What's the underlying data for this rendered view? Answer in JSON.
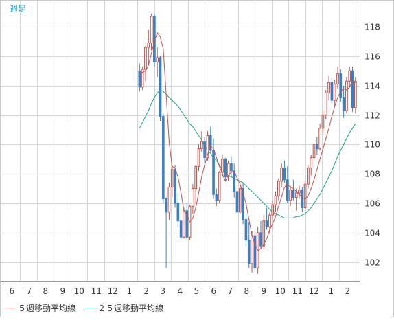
{
  "chart_data": {
    "type": "candlestick",
    "title": "週足",
    "x_tick_labels": [
      "6",
      "7",
      "8",
      "9",
      "10",
      "11",
      "12",
      "1",
      "2",
      "3",
      "4",
      "5",
      "6",
      "7",
      "8",
      "9",
      "10",
      "11",
      "12",
      "1",
      "2"
    ],
    "y_ticks": [
      102,
      104,
      106,
      108,
      110,
      112,
      114,
      116,
      118
    ],
    "ylim": [
      100.7,
      119.8
    ],
    "grid": true,
    "legend": {
      "placement": "bottom-left",
      "entries": [
        {
          "name": "５週移動平均線",
          "color": "#c0504d"
        },
        {
          "name": "２５週移動平均線",
          "color": "#1e9e6e"
        }
      ]
    },
    "colors": {
      "up": "#c0504d",
      "down": "#3d7fc1",
      "ma5": "#c0504d",
      "ma25": "#1e9e6e",
      "grid": "#d4d4d4",
      "border": "#999999",
      "tick_text": "#333333"
    },
    "weeks": 120,
    "ohlc": [
      [
        115.0,
        115.5,
        113.6,
        113.9
      ],
      [
        113.9,
        115.3,
        113.7,
        115.1
      ],
      [
        115.1,
        116.7,
        114.3,
        116.6
      ],
      [
        116.6,
        117.8,
        115.4,
        116.9
      ],
      [
        116.9,
        118.9,
        116.4,
        118.7
      ],
      [
        118.7,
        118.9,
        115.3,
        115.6
      ],
      [
        115.6,
        116.6,
        114.6,
        115.9
      ],
      [
        115.9,
        116.0,
        111.6,
        111.9
      ],
      [
        111.9,
        112.1,
        106.0,
        106.3
      ],
      [
        106.3,
        106.4,
        101.6,
        105.4
      ],
      [
        105.4,
        107.4,
        104.9,
        107.1
      ],
      [
        107.1,
        108.6,
        106.4,
        108.3
      ],
      [
        108.3,
        108.6,
        105.7,
        106.0
      ],
      [
        106.0,
        106.7,
        104.4,
        104.8
      ],
      [
        104.8,
        104.9,
        103.5,
        103.7
      ],
      [
        103.7,
        105.7,
        103.6,
        105.5
      ],
      [
        105.5,
        106.0,
        103.5,
        103.7
      ],
      [
        103.7,
        105.9,
        103.5,
        105.8
      ],
      [
        105.8,
        107.3,
        105.3,
        107.0
      ],
      [
        107.0,
        108.6,
        106.0,
        108.5
      ],
      [
        108.5,
        110.0,
        108.2,
        109.7
      ],
      [
        109.7,
        110.9,
        109.5,
        110.2
      ],
      [
        110.2,
        110.5,
        108.7,
        109.1
      ],
      [
        109.1,
        110.9,
        108.9,
        110.6
      ],
      [
        110.6,
        111.2,
        109.4,
        109.6
      ],
      [
        109.6,
        110.4,
        106.3,
        106.6
      ],
      [
        106.6,
        107.0,
        105.8,
        106.2
      ],
      [
        106.2,
        108.2,
        106.0,
        108.1
      ],
      [
        108.1,
        109.3,
        107.8,
        109.0
      ],
      [
        109.0,
        109.1,
        107.5,
        107.8
      ],
      [
        107.8,
        108.9,
        107.5,
        108.7
      ],
      [
        108.7,
        109.2,
        107.8,
        108.2
      ],
      [
        108.2,
        108.7,
        106.4,
        106.8
      ],
      [
        106.8,
        107.9,
        105.1,
        105.4
      ],
      [
        105.4,
        107.2,
        105.3,
        107.0
      ],
      [
        107.0,
        107.4,
        104.6,
        104.9
      ],
      [
        104.9,
        105.3,
        103.1,
        103.5
      ],
      [
        103.5,
        104.7,
        101.6,
        101.9
      ],
      [
        101.9,
        104.1,
        101.3,
        103.8
      ],
      [
        103.8,
        104.1,
        101.3,
        101.6
      ],
      [
        101.6,
        104.4,
        101.2,
        104.0
      ],
      [
        104.0,
        104.8,
        102.9,
        103.1
      ],
      [
        103.1,
        105.2,
        102.9,
        104.8
      ],
      [
        104.8,
        105.7,
        104.2,
        104.4
      ],
      [
        104.4,
        105.4,
        103.9,
        105.2
      ],
      [
        105.2,
        106.2,
        104.9,
        105.9
      ],
      [
        105.9,
        106.8,
        105.4,
        106.5
      ],
      [
        106.5,
        107.7,
        106.2,
        107.5
      ],
      [
        107.5,
        108.7,
        107.1,
        108.4
      ],
      [
        108.4,
        108.9,
        107.4,
        107.6
      ],
      [
        107.6,
        108.5,
        106.0,
        106.2
      ],
      [
        106.2,
        107.2,
        105.8,
        106.9
      ],
      [
        106.9,
        107.6,
        106.2,
        106.4
      ],
      [
        106.4,
        107.0,
        105.5,
        106.7
      ],
      [
        106.7,
        107.2,
        106.3,
        106.9
      ],
      [
        106.9,
        107.1,
        105.4,
        105.7
      ],
      [
        105.7,
        107.5,
        105.6,
        107.3
      ],
      [
        107.3,
        108.6,
        107.0,
        108.4
      ],
      [
        108.4,
        109.3,
        107.9,
        109.1
      ],
      [
        109.1,
        110.4,
        108.9,
        110.0
      ],
      [
        110.0,
        110.5,
        109.3,
        109.7
      ],
      [
        109.7,
        111.4,
        109.6,
        111.1
      ],
      [
        111.1,
        112.3,
        110.8,
        112.0
      ],
      [
        112.0,
        113.7,
        111.7,
        113.5
      ],
      [
        113.5,
        114.7,
        113.0,
        114.2
      ],
      [
        114.2,
        114.5,
        112.8,
        113.0
      ],
      [
        113.0,
        114.4,
        112.6,
        114.1
      ],
      [
        114.1,
        115.3,
        113.8,
        114.8
      ],
      [
        114.8,
        115.1,
        112.9,
        113.2
      ],
      [
        113.2,
        114.0,
        111.8,
        112.3
      ],
      [
        112.3,
        114.6,
        112.1,
        114.3
      ],
      [
        114.3,
        115.3,
        113.9,
        115.0
      ],
      [
        115.0,
        115.3,
        112.2,
        112.5
      ],
      [
        112.5,
        114.6,
        112.1,
        114.3
      ]
    ],
    "ma5": [
      114.8,
      114.9,
      115.0,
      115.4,
      116.2,
      117.0,
      117.6,
      117.3,
      116.5,
      113.4,
      110.2,
      108.5,
      108.4,
      107.8,
      106.7,
      105.5,
      105.2,
      104.7,
      105.0,
      105.7,
      106.7,
      107.8,
      108.6,
      109.3,
      109.9,
      109.7,
      109.1,
      108.5,
      108.0,
      107.5,
      107.9,
      108.1,
      108.2,
      107.7,
      107.3,
      106.7,
      106.0,
      104.9,
      103.8,
      103.2,
      102.8,
      102.9,
      103.2,
      103.6,
      104.2,
      104.6,
      105.1,
      105.8,
      106.4,
      107.1,
      107.3,
      107.1,
      107.0,
      106.8,
      106.6,
      106.4,
      106.3,
      106.5,
      107.0,
      107.6,
      108.3,
      109.0,
      109.7,
      110.4,
      111.1,
      111.9,
      112.6,
      113.2,
      113.6,
      113.8,
      113.7,
      113.9,
      114.3,
      114.2
    ],
    "ma25": [
      111.1,
      111.5,
      111.9,
      112.3,
      112.8,
      113.2,
      113.5,
      113.7,
      113.6,
      113.4,
      113.2,
      113.0,
      112.8,
      112.6,
      112.3,
      112.0,
      111.7,
      111.4,
      111.2,
      110.9,
      110.6,
      110.3,
      109.9,
      109.6,
      109.4,
      109.1,
      108.9,
      108.6,
      108.3,
      108.1,
      107.9,
      107.8,
      107.7,
      107.6,
      107.5,
      107.4,
      107.2,
      107.0,
      106.8,
      106.6,
      106.4,
      106.2,
      106.0,
      105.8,
      105.6,
      105.4,
      105.3,
      105.2,
      105.1,
      105.0,
      105.0,
      105.0,
      105.0,
      105.1,
      105.1,
      105.2,
      105.3,
      105.5,
      105.7,
      106.0,
      106.3,
      106.6,
      107.0,
      107.4,
      107.8,
      108.2,
      108.7,
      109.2,
      109.6,
      110.0,
      110.4,
      110.8,
      111.1,
      111.4
    ]
  }
}
